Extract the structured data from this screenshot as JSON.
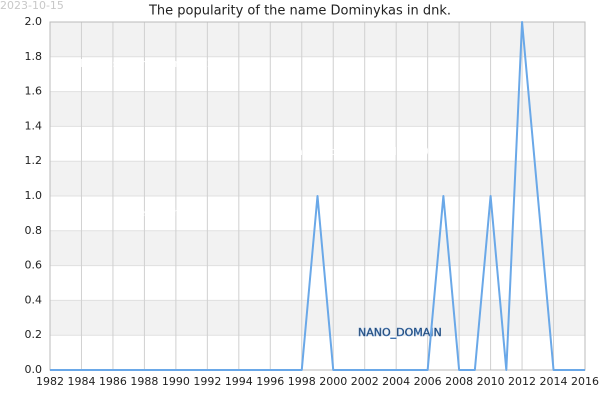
{
  "chart_data": {
    "type": "line",
    "title": "The popularity of the name Dominykas in dnk.",
    "date_stamp": "2023-10-15",
    "watermarks": [
      "Names of the World © 2023",
      "Names of the World © 2023",
      "Names of the World © 2023"
    ],
    "annotation": "NANO_DOMAIN",
    "x": [
      1982,
      1983,
      1984,
      1985,
      1986,
      1987,
      1988,
      1989,
      1990,
      1991,
      1992,
      1993,
      1994,
      1995,
      1996,
      1997,
      1998,
      1999,
      2000,
      2001,
      2002,
      2003,
      2004,
      2005,
      2006,
      2007,
      2008,
      2009,
      2010,
      2011,
      2012,
      2013,
      2014,
      2015,
      2016
    ],
    "series": [
      {
        "color": "#6aa8e8",
        "values": [
          0,
          0,
          0,
          0,
          0,
          0,
          0,
          0,
          0,
          0,
          0,
          0,
          0,
          0,
          0,
          0,
          0,
          1,
          0,
          0,
          0,
          0,
          0,
          0,
          0,
          1,
          0,
          0,
          1,
          0,
          2,
          1,
          0,
          0,
          0
        ]
      }
    ],
    "xlim": [
      1982,
      2016
    ],
    "xticks": [
      1982,
      1984,
      1986,
      1988,
      1990,
      1992,
      1994,
      1996,
      1998,
      2000,
      2002,
      2004,
      2006,
      2008,
      2010,
      2012,
      2014,
      2016
    ],
    "ylim": [
      0,
      2
    ],
    "yticks": [
      {
        "value": 0,
        "label": "0.0"
      },
      {
        "value": 0.2,
        "label": "0.2"
      },
      {
        "value": 0.4,
        "label": "0.4"
      },
      {
        "value": 0.6,
        "label": "0.6"
      },
      {
        "value": 0.8,
        "label": "0.8"
      },
      {
        "value": 1,
        "label": "1.0"
      },
      {
        "value": 1.2,
        "label": "1.2"
      },
      {
        "value": 1.4,
        "label": "1.4"
      },
      {
        "value": 1.6,
        "label": "1.6"
      },
      {
        "value": 1.8,
        "label": "1.8"
      },
      {
        "value": 2,
        "label": "2.0"
      }
    ],
    "grid": true
  }
}
